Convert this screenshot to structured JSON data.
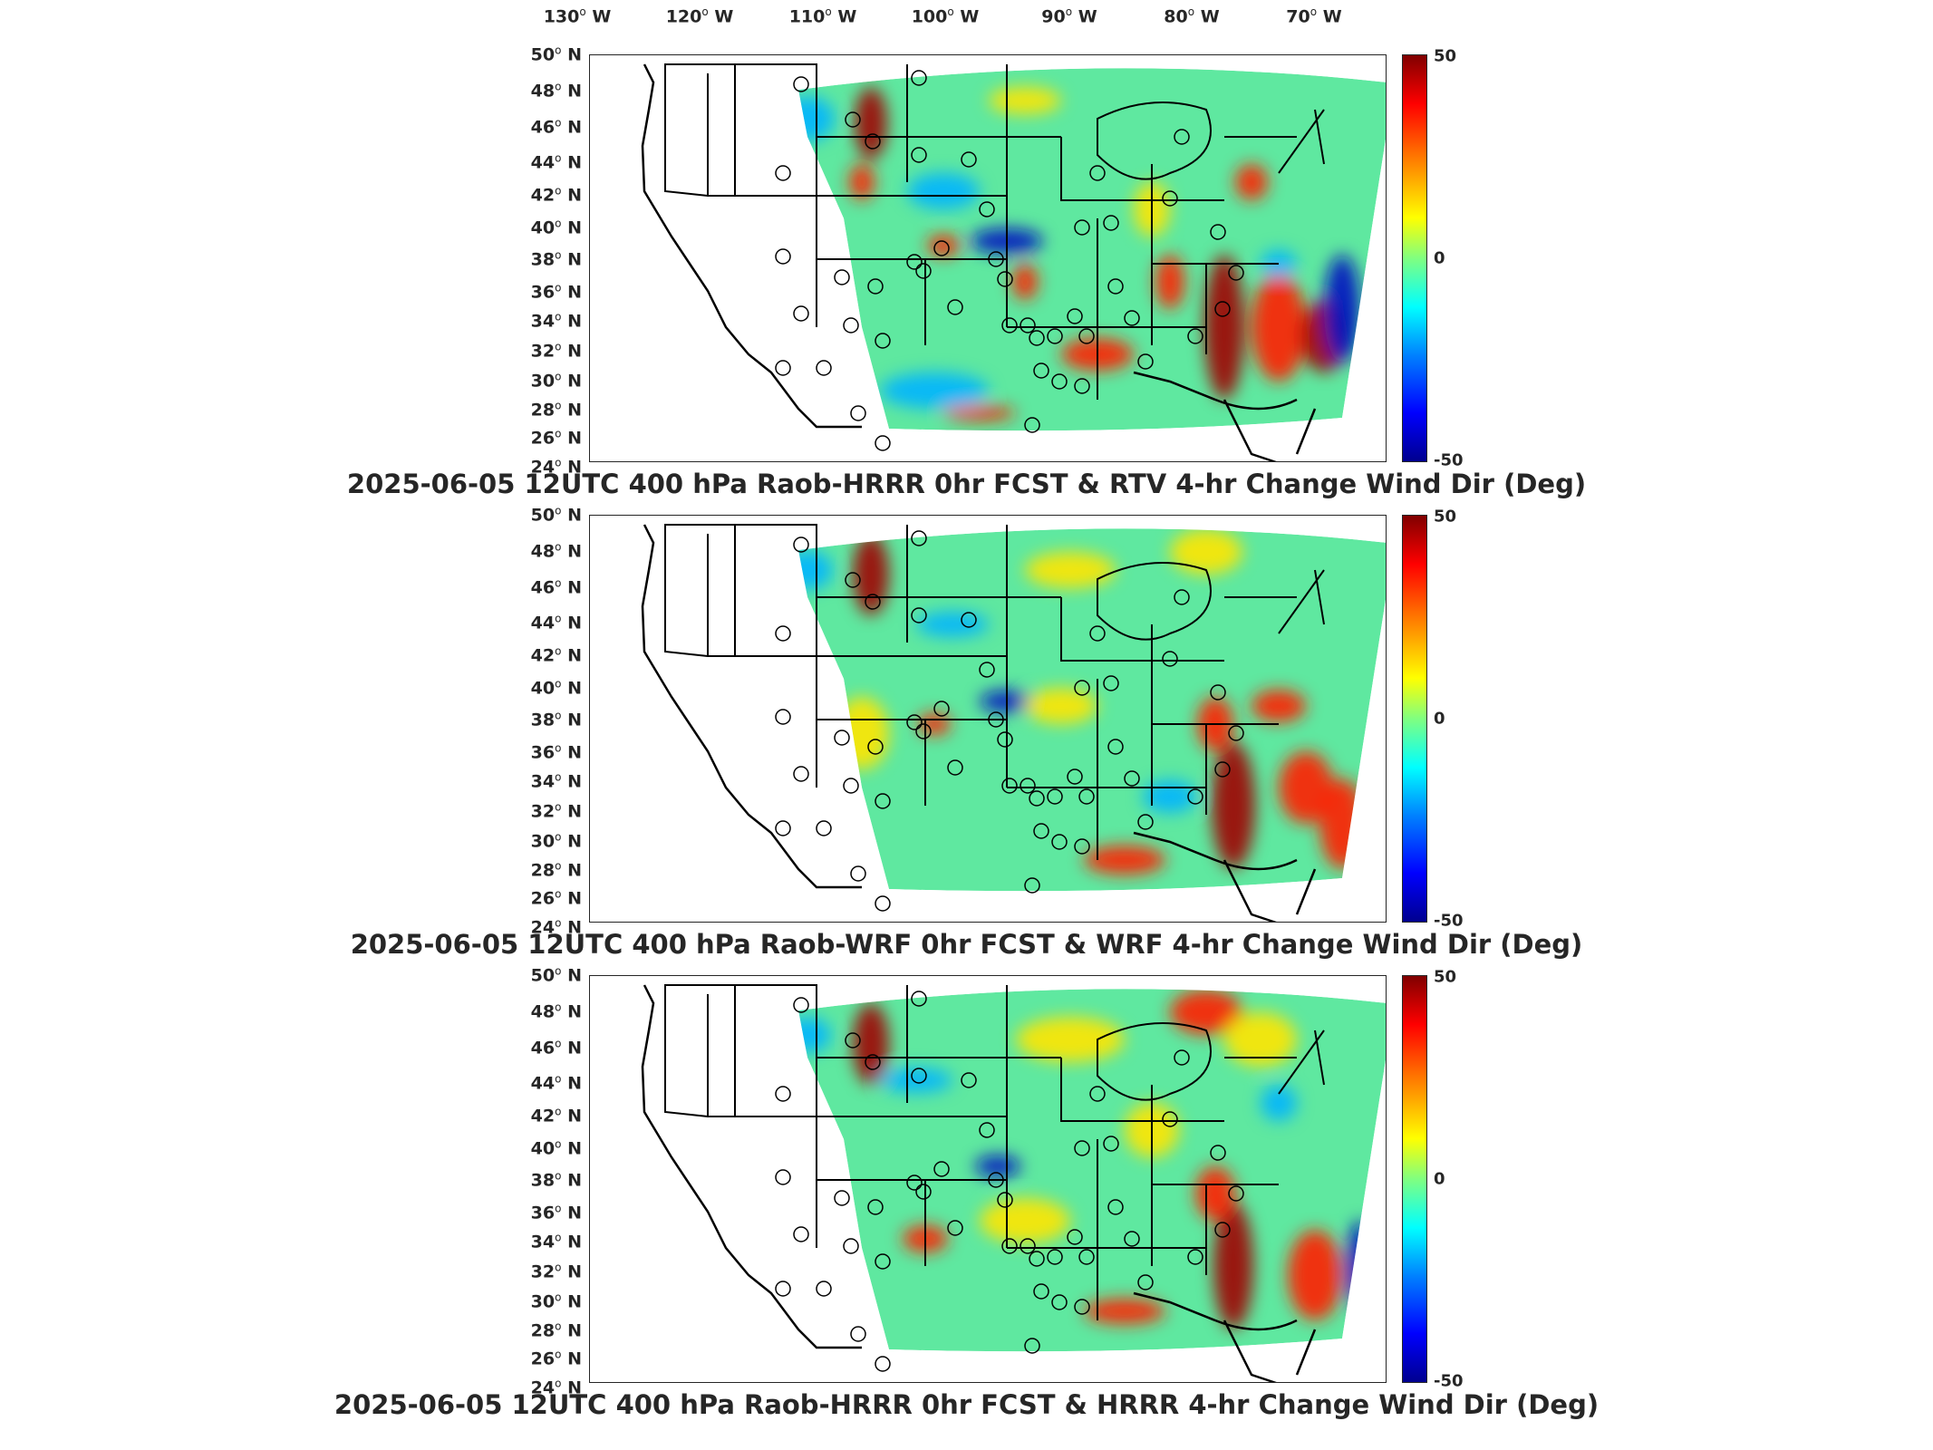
{
  "lon_labels": [
    "130",
    "120",
    "110",
    "100",
    "90",
    "80",
    "70"
  ],
  "lon_suffix": "W",
  "lat_labels": [
    "50",
    "48",
    "46",
    "44",
    "42",
    "40",
    "38",
    "36",
    "34",
    "32",
    "30",
    "28",
    "26",
    "24"
  ],
  "lat_suffix": "N",
  "colorbar": {
    "max": "50",
    "mid": "0",
    "min": "-50"
  },
  "panels": [
    {
      "caption": "2025-06-05 12UTC 400 hPa Raob-HRRR 0hr FCST & RTV 4-hr Change Wind Dir (Deg)"
    },
    {
      "caption": "2025-06-05 12UTC 400 hPa Raob-WRF 0hr FCST & WRF 4-hr Change Wind Dir (Deg)"
    },
    {
      "caption": "2025-06-05 12UTC 400 hPa Raob-HRRR 0hr FCST & HRRR 4-hr Change Wind Dir (Deg)"
    }
  ],
  "colors": {
    "field_base": "#5fe8a0",
    "warm": "#ff2000",
    "hot": "#a00000",
    "cool": "#00b4ff",
    "cold": "#0010c0",
    "yellow": "#ffe600",
    "outline": "#000000"
  }
}
